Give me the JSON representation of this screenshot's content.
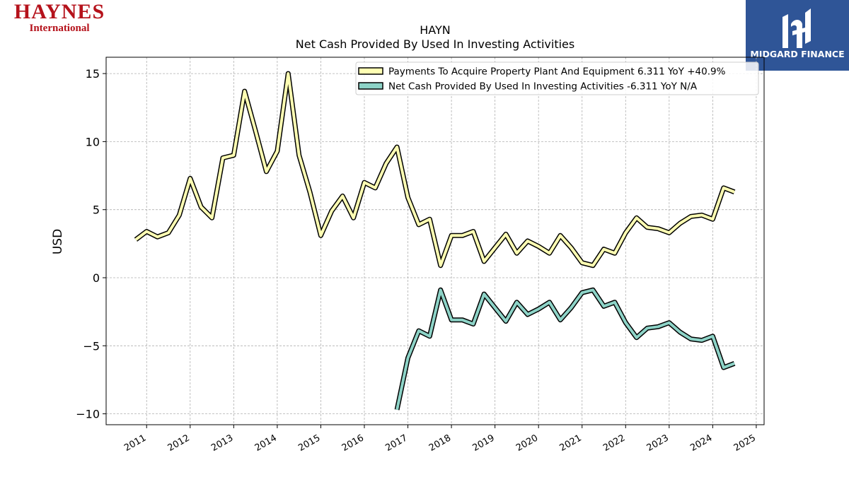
{
  "logos": {
    "company": {
      "name": "HAYNES",
      "sub": "International"
    },
    "publisher": {
      "name": "MIDGARD FINANCE"
    }
  },
  "colors": {
    "series_capex": "#ffffb3",
    "series_investing": "#8dd3c7",
    "outline": "#000000",
    "grid": "#b0b0b0",
    "brand_red": "#b5121b",
    "publisher_blue": "#2f5597"
  },
  "chart_data": {
    "type": "line",
    "title": "HAYN",
    "subtitle": "Net Cash Provided By Used In Investing Activities",
    "ylabel": "USD",
    "xlabel": "",
    "ylim": [
      -10.8,
      16.2
    ],
    "xlim": [
      2010.07,
      2025.18
    ],
    "yticks": [
      -10,
      -5,
      0,
      5,
      10,
      15
    ],
    "ytick_labels": [
      "−10",
      "−5",
      "0",
      "5",
      "10",
      "15"
    ],
    "xticks": [
      2011,
      2012,
      2013,
      2014,
      2015,
      2016,
      2017,
      2018,
      2019,
      2020,
      2021,
      2022,
      2023,
      2024,
      2025
    ],
    "grid": true,
    "legend_position": "top-right",
    "series": [
      {
        "name": "Payments To Acquire Property Plant And Equipment  6.311 YoY +40.9%",
        "x": [
          2010.75,
          2011.0,
          2011.25,
          2011.5,
          2011.75,
          2012.0,
          2012.25,
          2012.5,
          2012.75,
          2013.0,
          2013.25,
          2013.5,
          2013.75,
          2014.0,
          2014.25,
          2014.5,
          2014.75,
          2015.0,
          2015.25,
          2015.5,
          2015.75,
          2016.0,
          2016.25,
          2016.5,
          2016.75,
          2017.0,
          2017.25,
          2017.5,
          2017.75,
          2018.0,
          2018.25,
          2018.5,
          2018.75,
          2019.0,
          2019.25,
          2019.5,
          2019.75,
          2020.0,
          2020.25,
          2020.5,
          2020.75,
          2021.0,
          2021.25,
          2021.5,
          2021.75,
          2022.0,
          2022.25,
          2022.5,
          2022.75,
          2023.0,
          2023.25,
          2023.5,
          2023.75,
          2024.0,
          2024.25,
          2024.5
        ],
        "values": [
          2.8,
          3.4,
          3.0,
          3.3,
          4.6,
          7.3,
          5.2,
          4.4,
          8.8,
          9.0,
          13.7,
          10.8,
          7.8,
          9.3,
          15.0,
          9.0,
          6.3,
          3.1,
          4.9,
          6.0,
          4.4,
          7.0,
          6.6,
          8.4,
          9.6,
          5.9,
          3.9,
          4.3,
          0.9,
          3.1,
          3.1,
          3.4,
          1.2,
          2.2,
          3.2,
          1.8,
          2.7,
          2.3,
          1.8,
          3.1,
          2.2,
          1.1,
          0.9,
          2.1,
          1.8,
          3.3,
          4.4,
          3.7,
          3.6,
          3.3,
          4.0,
          4.5,
          4.6,
          4.3,
          6.6,
          6.3
        ]
      },
      {
        "name": "Net Cash Provided By Used In Investing Activities  -6.311 YoY N/A",
        "x": [
          2016.75,
          2017.0,
          2017.25,
          2017.5,
          2017.75,
          2018.0,
          2018.25,
          2018.5,
          2018.75,
          2019.0,
          2019.25,
          2019.5,
          2019.75,
          2020.0,
          2020.25,
          2020.5,
          2020.75,
          2021.0,
          2021.25,
          2021.5,
          2021.75,
          2022.0,
          2022.25,
          2022.5,
          2022.75,
          2023.0,
          2023.25,
          2023.5,
          2023.75,
          2024.0,
          2024.25,
          2024.5
        ],
        "values": [
          -9.7,
          -5.9,
          -3.9,
          -4.3,
          -0.9,
          -3.1,
          -3.1,
          -3.4,
          -1.2,
          -2.2,
          -3.2,
          -1.8,
          -2.7,
          -2.3,
          -1.8,
          -3.1,
          -2.2,
          -1.1,
          -0.9,
          -2.1,
          -1.8,
          -3.3,
          -4.4,
          -3.7,
          -3.6,
          -3.3,
          -4.0,
          -4.5,
          -4.6,
          -4.3,
          -6.6,
          -6.3
        ]
      }
    ]
  }
}
